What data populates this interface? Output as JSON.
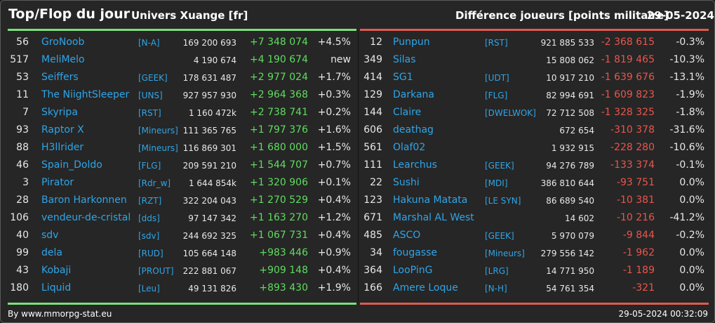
{
  "header": {
    "title": "Top/Flop du jour",
    "universe": "Univers Xuange [fr]",
    "diff_label": "Différence joueurs [points militaire]",
    "date": "29-05-2024"
  },
  "colors": {
    "top_accent": "#7be07b",
    "flop_accent": "#e05a52",
    "link": "#2fa5e8",
    "gain": "#5fdc5f",
    "loss": "#e9554c"
  },
  "top": [
    {
      "rank": "56",
      "name": "GroNoob",
      "ally": "[N-A]",
      "points": "169 200 693",
      "delta": "+7 348 074",
      "pct": "+4.5%"
    },
    {
      "rank": "517",
      "name": "MeliMelo",
      "ally": "",
      "points": "4 190 674",
      "delta": "+4 190 674",
      "pct": "new"
    },
    {
      "rank": "53",
      "name": "Seiffers",
      "ally": "[GEEK]",
      "points": "178 631 487",
      "delta": "+2 977 024",
      "pct": "+1.7%"
    },
    {
      "rank": "11",
      "name": "The NiightSleeper",
      "ally": "[UNS]",
      "points": "927 957 930",
      "delta": "+2 964 368",
      "pct": "+0.3%"
    },
    {
      "rank": "7",
      "name": "Skyripa",
      "ally": "[RST]",
      "points": "1 160 472k",
      "delta": "+2 738 741",
      "pct": "+0.2%"
    },
    {
      "rank": "93",
      "name": "Raptor X",
      "ally": "[Mineurs]",
      "points": "111 365 765",
      "delta": "+1 797 376",
      "pct": "+1.6%"
    },
    {
      "rank": "88",
      "name": "H3llrider",
      "ally": "[Mineurs]",
      "points": "116 869 301",
      "delta": "+1 680 000",
      "pct": "+1.5%"
    },
    {
      "rank": "46",
      "name": "Spain_Doldo",
      "ally": "[FLG]",
      "points": "209 591 210",
      "delta": "+1 544 707",
      "pct": "+0.7%"
    },
    {
      "rank": "3",
      "name": "Pirator",
      "ally": "[Rdr_w]",
      "points": "1 644 854k",
      "delta": "+1 320 906",
      "pct": "+0.1%"
    },
    {
      "rank": "28",
      "name": "Baron Harkonnen",
      "ally": "[RZT]",
      "points": "322 204 043",
      "delta": "+1 270 529",
      "pct": "+0.4%"
    },
    {
      "rank": "106",
      "name": "vendeur-de-cristal",
      "ally": "[dds]",
      "points": "97 147 342",
      "delta": "+1 163 270",
      "pct": "+1.2%"
    },
    {
      "rank": "40",
      "name": "sdv",
      "ally": "[sdv]",
      "points": "244 692 325",
      "delta": "+1 067 731",
      "pct": "+0.4%"
    },
    {
      "rank": "99",
      "name": "dela",
      "ally": "[RUD]",
      "points": "105 664 148",
      "delta": "+983 446",
      "pct": "+0.9%"
    },
    {
      "rank": "43",
      "name": "Kobaji",
      "ally": "[PROUT]",
      "points": "222 881 067",
      "delta": "+909 148",
      "pct": "+0.4%"
    },
    {
      "rank": "180",
      "name": "Liquid",
      "ally": "[Leu]",
      "points": "49 131 826",
      "delta": "+893 430",
      "pct": "+1.9%"
    }
  ],
  "flop": [
    {
      "rank": "12",
      "name": "Punpun",
      "ally": "[RST]",
      "points": "921 885 533",
      "delta": "-2 368 615",
      "pct": "-0.3%"
    },
    {
      "rank": "349",
      "name": "Silas",
      "ally": "",
      "points": "15 808 062",
      "delta": "-1 819 465",
      "pct": "-10.3%"
    },
    {
      "rank": "414",
      "name": "SG1",
      "ally": "[UDT]",
      "points": "10 917 210",
      "delta": "-1 639 676",
      "pct": "-13.1%"
    },
    {
      "rank": "129",
      "name": "Darkana",
      "ally": "[FLG]",
      "points": "82 994 691",
      "delta": "-1 609 823",
      "pct": "-1.9%"
    },
    {
      "rank": "144",
      "name": "Claire",
      "ally": "[DWELWOK]",
      "points": "72 712 508",
      "delta": "-1 328 325",
      "pct": "-1.8%"
    },
    {
      "rank": "606",
      "name": "deathag",
      "ally": "",
      "points": "672 654",
      "delta": "-310 378",
      "pct": "-31.6%"
    },
    {
      "rank": "561",
      "name": "Olaf02",
      "ally": "",
      "points": "1 932 915",
      "delta": "-228 280",
      "pct": "-10.6%"
    },
    {
      "rank": "111",
      "name": "Learchus",
      "ally": "[GEEK]",
      "points": "94 276 789",
      "delta": "-133 374",
      "pct": "-0.1%"
    },
    {
      "rank": "22",
      "name": "Sushi",
      "ally": "[MDI]",
      "points": "386 810 644",
      "delta": "-93 751",
      "pct": "0.0%"
    },
    {
      "rank": "123",
      "name": "Hakuna Matata",
      "ally": "[LE SYN]",
      "points": "86 689 540",
      "delta": "-10 381",
      "pct": "0.0%"
    },
    {
      "rank": "671",
      "name": "Marshal AL West",
      "ally": "",
      "points": "14 602",
      "delta": "-10 216",
      "pct": "-41.2%"
    },
    {
      "rank": "485",
      "name": "ASCO",
      "ally": "[GEEK]",
      "points": "5 970 079",
      "delta": "-9 844",
      "pct": "-0.2%"
    },
    {
      "rank": "34",
      "name": "fougasse",
      "ally": "[Mineurs]",
      "points": "279 556 142",
      "delta": "-1 962",
      "pct": "0.0%"
    },
    {
      "rank": "364",
      "name": "LooPinG",
      "ally": "[LRG]",
      "points": "14 771 950",
      "delta": "-1 189",
      "pct": "0.0%"
    },
    {
      "rank": "166",
      "name": "Amere Loque",
      "ally": "[N-H]",
      "points": "54 761 354",
      "delta": "-321",
      "pct": "0.0%"
    }
  ],
  "footer": {
    "source": "By www.mmorpg-stat.eu",
    "timestamp": "29-05-2024 00:32:09"
  }
}
